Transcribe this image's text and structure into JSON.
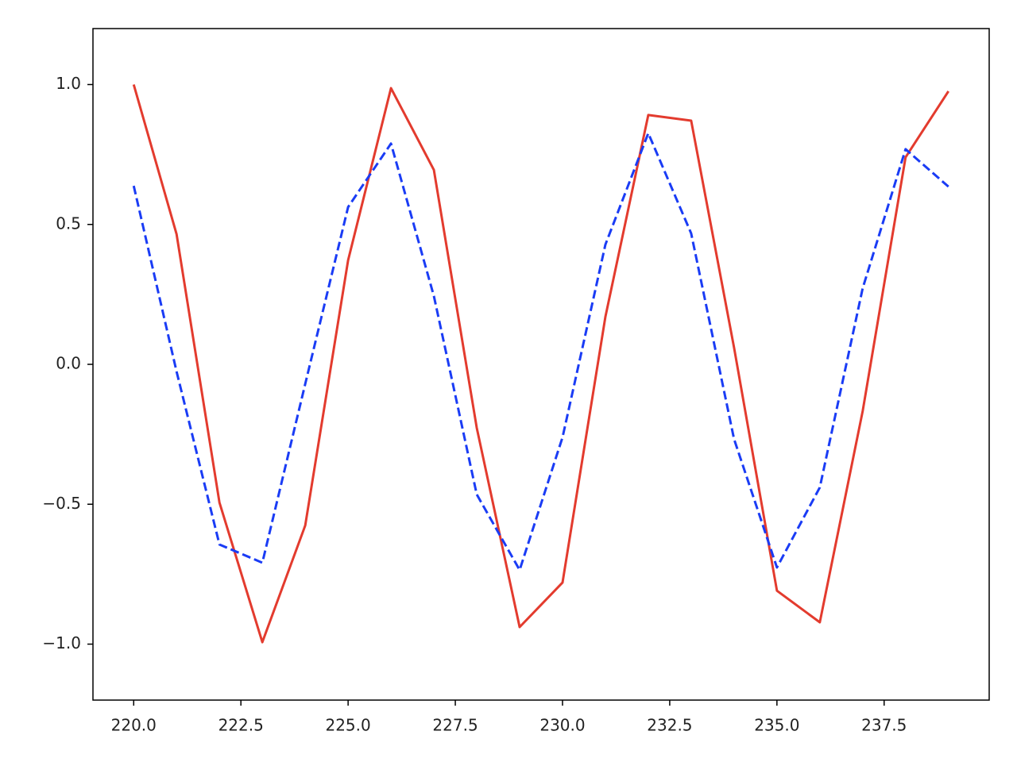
{
  "chart_data": {
    "type": "line",
    "x": [
      220,
      221,
      222,
      223,
      224,
      225,
      226,
      227,
      228,
      229,
      230,
      231,
      232,
      233,
      234,
      235,
      236,
      237,
      238,
      239
    ],
    "series": [
      {
        "color": "#e33b2e",
        "dash": false,
        "values": [
          1.0,
          0.465,
          -0.494,
          -0.993,
          -0.576,
          0.372,
          0.987,
          0.695,
          -0.227,
          -0.939,
          -0.78,
          0.17,
          0.891,
          0.871,
          0.06,
          -0.809,
          -0.922,
          -0.167,
          0.74,
          0.976
        ]
      },
      {
        "color": "#1a3cf5",
        "dash": true,
        "values": [
          0.638,
          -0.026,
          -0.644,
          -0.709,
          -0.07,
          0.562,
          0.789,
          0.244,
          -0.465,
          -0.735,
          -0.261,
          0.428,
          0.826,
          0.468,
          -0.267,
          -0.726,
          -0.44,
          0.272,
          0.769,
          0.635
        ]
      }
    ],
    "xlim": [
      219.05,
      239.95
    ],
    "ylim": [
      -1.2,
      1.2
    ],
    "xticks": [
      {
        "value": 220,
        "label": "220.0"
      },
      {
        "value": 222.5,
        "label": "222.5"
      },
      {
        "value": 225,
        "label": "225.0"
      },
      {
        "value": 227.5,
        "label": "227.5"
      },
      {
        "value": 230,
        "label": "230.0"
      },
      {
        "value": 232.5,
        "label": "232.5"
      },
      {
        "value": 235,
        "label": "235.0"
      },
      {
        "value": 237.5,
        "label": "237.5"
      }
    ],
    "yticks": [
      {
        "value": -1,
        "label": "−1.0"
      },
      {
        "value": -0.5,
        "label": "−0.5"
      },
      {
        "value": 0,
        "label": "0.0"
      },
      {
        "value": 0.5,
        "label": "0.5"
      },
      {
        "value": 1,
        "label": "1.0"
      }
    ]
  }
}
